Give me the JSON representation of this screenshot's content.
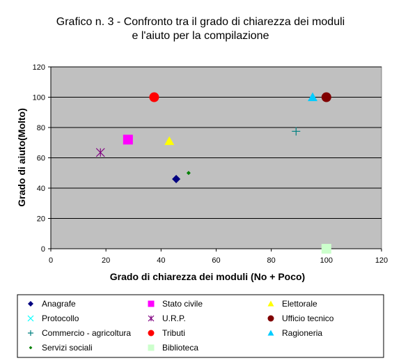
{
  "chart_data": {
    "type": "scatter",
    "title_line1": "Grafico n. 3 - Confronto tra il grado di chiarezza dei moduli",
    "title_line2": "e l'aiuto per la compilazione",
    "xlabel": "Grado di chiarezza dei moduli (No + Poco)",
    "ylabel": "Grado di aiuto(Molto)",
    "xlim": [
      0,
      120
    ],
    "ylim": [
      0,
      120
    ],
    "xticks": [
      0,
      20,
      40,
      60,
      80,
      100,
      120
    ],
    "yticks": [
      0,
      20,
      40,
      60,
      80,
      100,
      120
    ],
    "grid": "horizontal",
    "plot_background": "#c0c0c0",
    "legend_placement": "bottom",
    "series": [
      {
        "name": "Anagrafe",
        "marker": "diamond",
        "color": "#000080",
        "x": 45.5,
        "y": 46
      },
      {
        "name": "Stato civile",
        "marker": "square",
        "color": "#ff00ff",
        "x": 28,
        "y": 72
      },
      {
        "name": "Elettorale",
        "marker": "triangle",
        "color": "#ffff00",
        "x": 43,
        "y": 71
      },
      {
        "name": "Protocollo",
        "marker": "x",
        "color": "#00ffff",
        "x": null,
        "y": null
      },
      {
        "name": "U.R.P.",
        "marker": "star",
        "color": "#800080",
        "x": 18,
        "y": 63.5
      },
      {
        "name": "Ufficio tecnico",
        "marker": "circle",
        "color": "#800000",
        "x": 100,
        "y": 100
      },
      {
        "name": "Commercio - agricoltura",
        "marker": "plus",
        "color": "#008080",
        "x": 89,
        "y": 77.5
      },
      {
        "name": "Tributi",
        "marker": "circle",
        "color": "#ff0000",
        "x": 37.5,
        "y": 100
      },
      {
        "name": "Ragioneria",
        "marker": "triangle",
        "color": "#00ccff",
        "x": 95,
        "y": 100
      },
      {
        "name": "Servizi sociali",
        "marker": "smalldiamond",
        "color": "#008000",
        "x": 50,
        "y": 50
      },
      {
        "name": "Biblioteca",
        "marker": "square",
        "color": "#ccffcc",
        "x": 100,
        "y": 0
      }
    ]
  }
}
